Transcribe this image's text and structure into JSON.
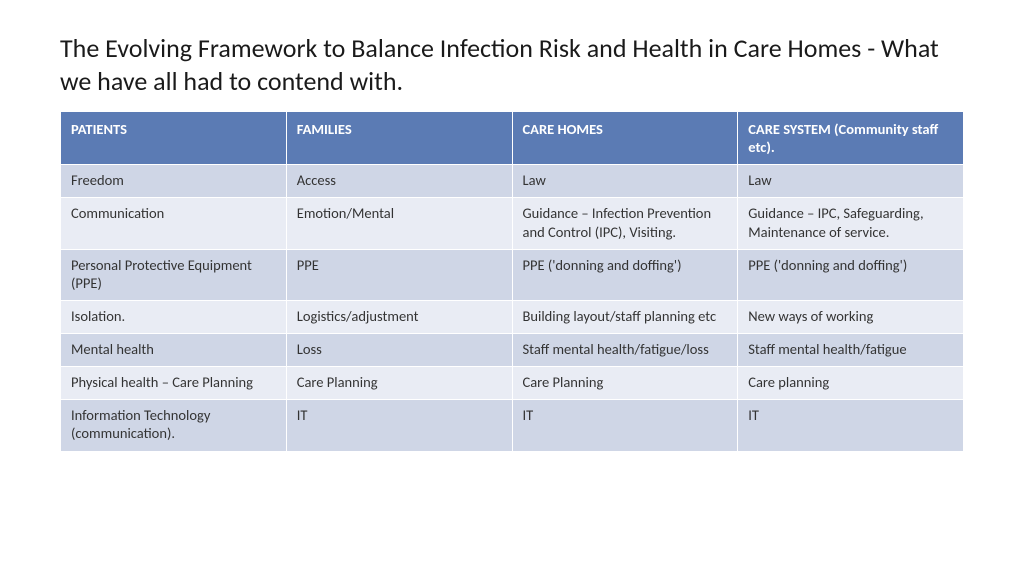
{
  "title": "The Evolving Framework to Balance Infection Risk and Health in Care Homes - What we have all had to contend with.",
  "table": {
    "header_bg": "#5B7BB4",
    "header_fg": "#ffffff",
    "row_odd_bg": "#cfd6e6",
    "row_even_bg": "#e9ecf4",
    "cell_fg": "#333333",
    "title_fontsize": 26,
    "cell_fontsize": 14.5,
    "columns": [
      "PATIENTS",
      "FAMILIES",
      "CARE HOMES",
      "CARE SYSTEM (Community staff etc)."
    ],
    "rows": [
      [
        "Freedom",
        "Access",
        "Law",
        "Law"
      ],
      [
        "Communication",
        "Emotion/Mental",
        "Guidance – Infection Prevention and Control (IPC), Visiting.",
        "Guidance – IPC, Safeguarding, Maintenance of service."
      ],
      [
        "Personal Protective Equipment (PPE)",
        "PPE",
        "PPE ('donning and doffing')",
        "PPE ('donning and doffing')"
      ],
      [
        "Isolation.",
        "Logistics/adjustment",
        "Building layout/staff planning etc",
        "New ways of working"
      ],
      [
        "Mental health",
        "Loss",
        "Staff mental health/fatigue/loss",
        "Staff mental health/fatigue"
      ],
      [
        "Physical health – Care Planning",
        "Care Planning",
        "Care Planning",
        "Care planning"
      ],
      [
        "Information Technology (communication).",
        "IT",
        "IT",
        "IT"
      ]
    ]
  }
}
